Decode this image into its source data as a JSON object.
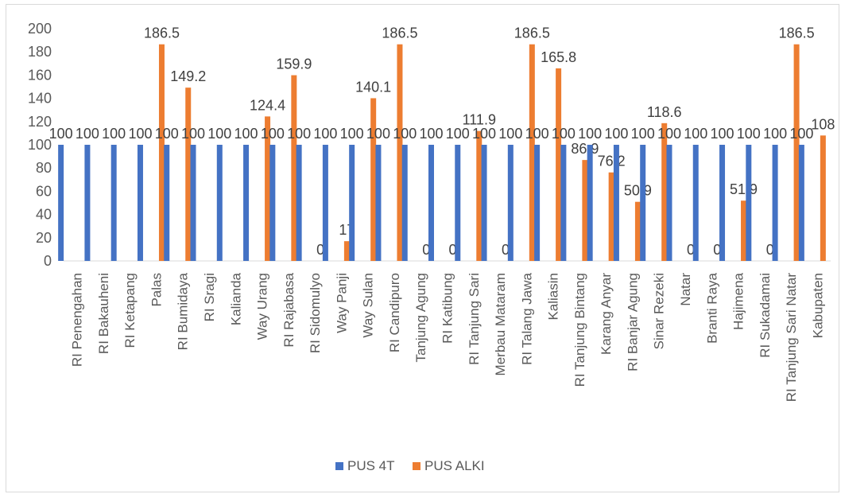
{
  "chart_data": {
    "type": "bar",
    "title": "",
    "xlabel": "",
    "ylabel": "",
    "ylim": [
      0,
      200
    ],
    "ytick_step": 20,
    "grid": false,
    "legend_position": "bottom",
    "categories": [
      "RI Penengahan",
      "RI Bakauheni",
      "RI Ketapang",
      "Palas",
      "RI Bumidaya",
      "RI Sragi",
      "Kalianda",
      "Way Urang",
      "RI Rajabasa",
      "RI Sidomulyo",
      "Way Panji",
      "Way Sulan",
      "RI Candipuro",
      "Tanjung Agung",
      "RI Katibung",
      "RI Tanjung Sari",
      "Merbau Mataram",
      "RI Talang Jawa",
      "Kaliasin",
      "RI Tanjung Bintang",
      "Karang Anyar",
      "RI Banjar Agung",
      "Sinar Rezeki",
      "Natar",
      "Branti Raya",
      "Hajimena",
      "RI Sukadamai",
      "RI Tanjung Sari Natar",
      "Kabupaten"
    ],
    "series": [
      {
        "name": "PUS 4T",
        "color": "#4472C4",
        "values": [
          100,
          100,
          100,
          100,
          100,
          100,
          100,
          100,
          100,
          100,
          100,
          100,
          100,
          100,
          100,
          100,
          100,
          100,
          100,
          100,
          100,
          100,
          100,
          100,
          100,
          100,
          100,
          100,
          100
        ],
        "labels": [
          "100",
          "100",
          "100",
          "100",
          "100",
          "100",
          "100",
          "100",
          "100",
          "100",
          "100",
          "100",
          "100",
          "100",
          "100",
          "100",
          "100",
          "100",
          "100",
          "100",
          "100",
          "100",
          "100",
          "100",
          "100",
          "100",
          "100",
          "100",
          "100"
        ]
      },
      {
        "name": "PUS ALKI",
        "color": "#ED7D31",
        "values": [
          null,
          null,
          null,
          186.5,
          149.2,
          null,
          null,
          124.4,
          159.9,
          0,
          17,
          140.1,
          186.5,
          0,
          0,
          111.9,
          0,
          186.5,
          165.8,
          86.9,
          76.2,
          50.9,
          118.6,
          0,
          0,
          51.9,
          0,
          186.5,
          108
        ],
        "labels": [
          "",
          "",
          "",
          "186.5",
          "149.2",
          "",
          "",
          "124.4",
          "159.9",
          "0",
          "17",
          "140.1",
          "186.5",
          "0",
          "0",
          "111.9",
          "0",
          "186.5",
          "165.8",
          "86.9",
          "76.2",
          "50.9",
          "118.6",
          "0",
          "0",
          "51.9",
          "0",
          "186.5",
          "108"
        ]
      }
    ]
  }
}
